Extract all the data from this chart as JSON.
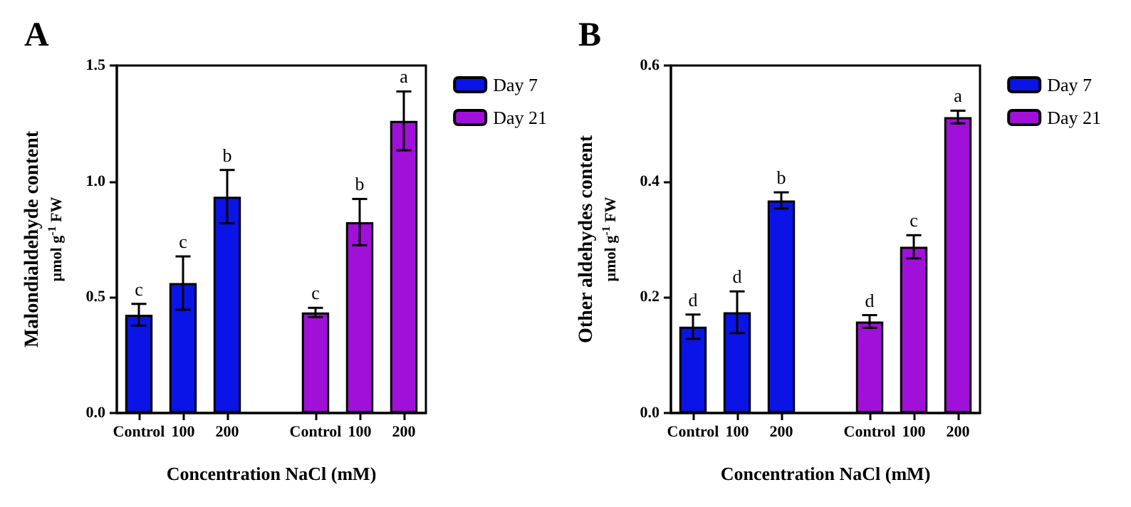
{
  "chart_data": [
    {
      "type": "bar",
      "title": "A",
      "xlabel": "Concentration NaCl (mM)",
      "ylabel": "Malondialdehyde content\nµmol g$^{-1}$ FW",
      "categories": [
        "Control",
        "100",
        "200",
        null,
        "Control",
        "100",
        "200"
      ],
      "series": [
        {
          "name": "Day 7",
          "color": "#0a14e6",
          "values": [
            0.424,
            0.561,
            0.934,
            null,
            null,
            null,
            null
          ],
          "errors": [
            0.047,
            0.115,
            0.115,
            null,
            null,
            null,
            null
          ],
          "value_labels": [
            "c",
            "c",
            "b",
            null,
            null,
            null,
            null
          ]
        },
        {
          "name": "Day 21",
          "color": "#a010d8",
          "values": [
            null,
            null,
            null,
            null,
            0.434,
            0.824,
            1.261
          ],
          "errors": [
            null,
            null,
            null,
            null,
            0.02,
            0.1,
            0.127
          ],
          "value_labels": [
            null,
            null,
            null,
            null,
            "c",
            "b",
            "a"
          ]
        }
      ],
      "ylim": [
        0,
        1.5
      ],
      "yticks": [
        {
          "value": 0,
          "label": "0.0"
        },
        {
          "value": 0.5,
          "label": "0.5"
        },
        {
          "value": 1,
          "label": "1.0"
        },
        {
          "value": 1.5,
          "label": "1.5"
        }
      ],
      "legend": "top right"
    },
    {
      "type": "bar",
      "title": "B",
      "xlabel": "Concentration NaCl (mM)",
      "ylabel": "Other aldehydes content\nµmol g$^{-1}$ FW",
      "categories": [
        "Control",
        "100",
        "200",
        null,
        "Control",
        "100",
        "200"
      ],
      "series": [
        {
          "name": "Day 7",
          "color": "#0a14e6",
          "values": [
            0.149,
            0.174,
            0.367,
            null,
            null,
            null,
            null
          ],
          "errors": [
            0.021,
            0.036,
            0.014,
            null,
            null,
            null,
            null
          ],
          "value_labels": [
            "d",
            "d",
            "b",
            null,
            null,
            null,
            null
          ]
        },
        {
          "name": "Day 21",
          "color": "#a010d8",
          "values": [
            null,
            null,
            null,
            null,
            0.158,
            0.287,
            0.511
          ],
          "errors": [
            null,
            null,
            null,
            null,
            0.011,
            0.02,
            0.011
          ],
          "value_labels": [
            null,
            null,
            null,
            null,
            "d",
            "c",
            "a"
          ]
        }
      ],
      "ylim": [
        0,
        0.6
      ],
      "yticks": [
        {
          "value": 0,
          "label": "0.0"
        },
        {
          "value": 0.2,
          "label": "0.2"
        },
        {
          "value": 0.4,
          "label": "0.4"
        },
        {
          "value": 0.6,
          "label": "0.6"
        }
      ],
      "legend": "top right"
    }
  ]
}
